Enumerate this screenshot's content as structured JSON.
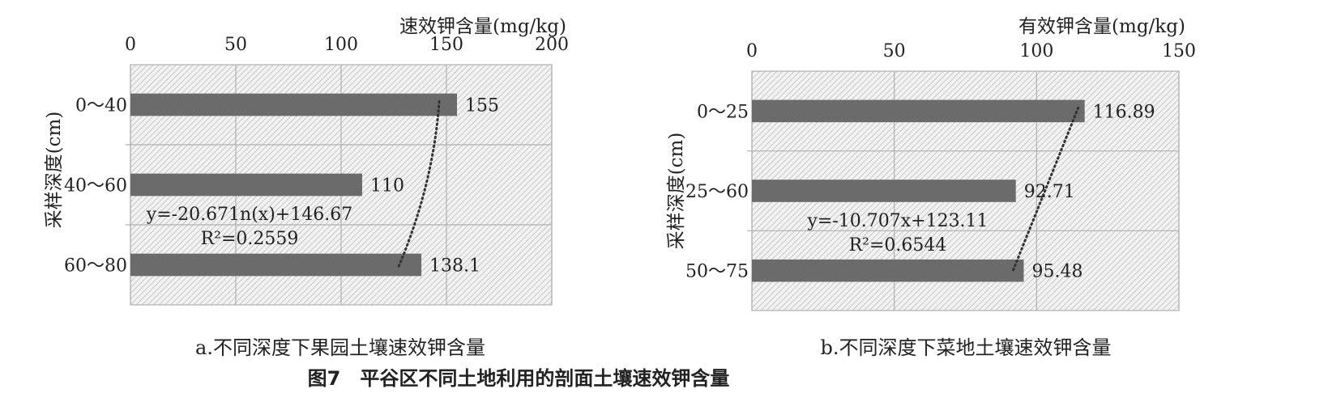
{
  "figure_caption": "图7　平谷区不同土地利用的剖面土壤速效钾含量",
  "colors": {
    "bar": "#6b6b6b",
    "hatch_bg": "#f2f2f2",
    "hatch_line": "#bdbdbd",
    "grid": "#b0b0b0",
    "trend": "#333333"
  },
  "chart_data": [
    {
      "type": "bar",
      "orientation": "horizontal",
      "caption": "a.不同深度下果园土壤速效钾含量",
      "xlabel": "速效钾含量(mg/kg)",
      "ylabel": "采样深度(cm)",
      "xlim": [
        0,
        200
      ],
      "xticks": [
        "0",
        "50",
        "100",
        "150",
        "200"
      ],
      "categories": [
        "0～40",
        "40～60",
        "60～80"
      ],
      "values": [
        155,
        110,
        138.1
      ],
      "value_labels": [
        "155",
        "110",
        "138.1"
      ],
      "trendline": {
        "type": "logarithmic",
        "equation": "y=-20.671n(x)+146.67",
        "r2": "R²=0.2559"
      },
      "grid": true
    },
    {
      "type": "bar",
      "orientation": "horizontal",
      "caption": "b.不同深度下菜地土壤速效钾含量",
      "xlabel": "有效钾含量(mg/kg)",
      "ylabel": "采样深度(cm)",
      "xlim": [
        0,
        150
      ],
      "xticks": [
        "0",
        "50",
        "100",
        "150"
      ],
      "categories": [
        "0～25",
        "25～60",
        "50～75"
      ],
      "values": [
        116.89,
        92.71,
        95.48
      ],
      "value_labels": [
        "116.89",
        "92.71",
        "95.48"
      ],
      "trendline": {
        "type": "linear",
        "equation": "y=-10.707x+123.11",
        "r2": "R²=0.6544"
      },
      "grid": true
    }
  ]
}
